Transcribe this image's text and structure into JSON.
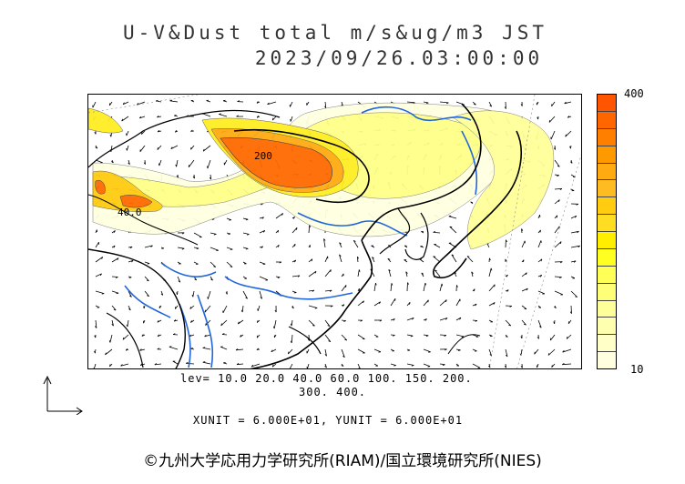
{
  "title": {
    "line1": "U-V&Dust total m/s&ug/m3 JST",
    "line2": "2023/09/26.03:00:00"
  },
  "map": {
    "contour_labels": [
      "40.0",
      "200"
    ]
  },
  "colorbar": {
    "max_label": "400",
    "min_label": "10",
    "colors_top_to_bottom": [
      "#ff5500",
      "#ff6600",
      "#ff7f00",
      "#ff9900",
      "#ffaa11",
      "#ffbb22",
      "#ffcc11",
      "#ffdd22",
      "#ffee00",
      "#ffff22",
      "#ffff55",
      "#ffff77",
      "#ffff99",
      "#ffffb0",
      "#ffffc8",
      "#ffffe0"
    ]
  },
  "levels": {
    "line1": "lev= 10.0 20.0 40.0 60.0 100. 150. 200.",
    "line2": "300. 400."
  },
  "units_text": "XUNIT = 6.000E+01, YUNIT = 6.000E+01",
  "copyright": "©九州大学応用力学研究所(RIAM)/国立環境研究所(NIES)"
}
